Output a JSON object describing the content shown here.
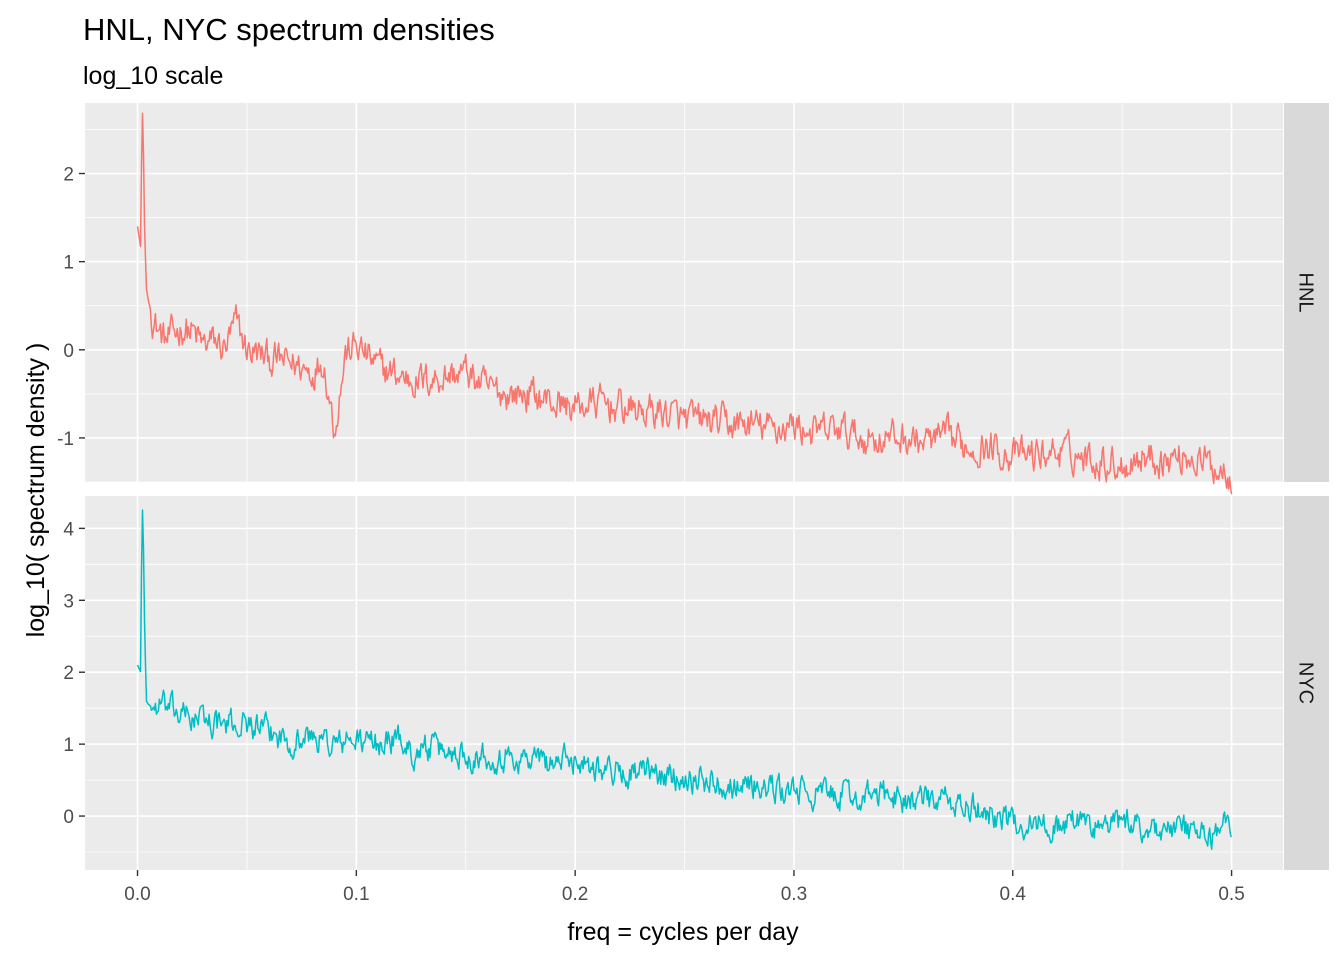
{
  "chart_data": {
    "type": "line",
    "title": "HNL, NYC spectrum densities",
    "subtitle": "log_10 scale",
    "xlabel": "freq = cycles per day",
    "ylabel": "log_10( spectrum density )",
    "xlim": [
      0,
      0.5
    ],
    "x_ticks": [
      "0.0",
      "0.1",
      "0.2",
      "0.3",
      "0.4",
      "0.5"
    ],
    "x_tick_values": [
      0,
      0.1,
      0.2,
      0.3,
      0.4,
      0.5
    ],
    "facet_layout": "rows, strip labels on the right",
    "grid": true,
    "legend": "none",
    "panels": [
      {
        "strip": "HNL",
        "color": "#F8766D",
        "ylim": [
          -1.5,
          2.8
        ],
        "y_ticks": [
          "2",
          "1",
          "0",
          "-1"
        ],
        "y_tick_values": [
          2,
          1,
          0,
          -1
        ],
        "x": [
          0,
          0.0015,
          0.002,
          0.0025,
          0.003,
          0.004,
          0.005,
          0.007,
          0.01,
          0.013,
          0.02,
          0.025,
          0.03,
          0.035,
          0.04,
          0.045,
          0.05,
          0.06,
          0.07,
          0.08,
          0.085,
          0.09,
          0.095,
          0.1,
          0.11,
          0.12,
          0.13,
          0.14,
          0.15,
          0.16,
          0.17,
          0.18,
          0.19,
          0.2,
          0.21,
          0.22,
          0.23,
          0.24,
          0.25,
          0.26,
          0.27,
          0.28,
          0.29,
          0.3,
          0.31,
          0.32,
          0.33,
          0.34,
          0.35,
          0.36,
          0.37,
          0.38,
          0.39,
          0.4,
          0.41,
          0.42,
          0.43,
          0.44,
          0.45,
          0.46,
          0.47,
          0.48,
          0.49,
          0.5
        ],
        "values": [
          1.4,
          1.15,
          2.6,
          2.75,
          1.6,
          0.7,
          0.55,
          0.35,
          0.2,
          0.1,
          0.25,
          0.2,
          0.05,
          0.1,
          0.0,
          0.3,
          0.0,
          -0.1,
          -0.15,
          -0.25,
          -0.1,
          -0.9,
          -0.05,
          0.05,
          -0.2,
          -0.3,
          -0.35,
          -0.3,
          -0.25,
          -0.45,
          -0.5,
          -0.5,
          -0.6,
          -0.65,
          -0.6,
          -0.65,
          -0.7,
          -0.7,
          -0.8,
          -0.8,
          -0.85,
          -0.85,
          -0.9,
          -0.85,
          -0.95,
          -0.9,
          -1.0,
          -1.0,
          -1.0,
          -1.05,
          -1.0,
          -1.1,
          -1.1,
          -1.2,
          -1.2,
          -1.15,
          -1.2,
          -1.25,
          -1.3,
          -1.2,
          -1.25,
          -1.2,
          -1.3,
          -1.4
        ]
      },
      {
        "strip": "NYC",
        "color": "#00BFC4",
        "ylim": [
          -0.75,
          4.45
        ],
        "y_ticks": [
          "4",
          "3",
          "2",
          "1",
          "0"
        ],
        "y_tick_values": [
          4,
          3,
          2,
          1,
          0
        ],
        "x": [
          0,
          0.0015,
          0.002,
          0.0025,
          0.003,
          0.004,
          0.005,
          0.008,
          0.01,
          0.02,
          0.03,
          0.04,
          0.05,
          0.06,
          0.07,
          0.08,
          0.09,
          0.1,
          0.11,
          0.12,
          0.125,
          0.13,
          0.14,
          0.15,
          0.16,
          0.17,
          0.18,
          0.19,
          0.2,
          0.21,
          0.22,
          0.23,
          0.24,
          0.25,
          0.26,
          0.27,
          0.28,
          0.29,
          0.3,
          0.31,
          0.32,
          0.33,
          0.34,
          0.35,
          0.36,
          0.37,
          0.38,
          0.39,
          0.4,
          0.41,
          0.42,
          0.43,
          0.44,
          0.45,
          0.46,
          0.47,
          0.48,
          0.49,
          0.5
        ],
        "values": [
          2.1,
          2.0,
          4.2,
          4.3,
          3.0,
          1.6,
          1.55,
          1.5,
          1.55,
          1.4,
          1.35,
          1.25,
          1.3,
          1.15,
          1.05,
          1.1,
          1.0,
          1.05,
          1.0,
          1.1,
          0.85,
          0.95,
          0.9,
          0.85,
          0.85,
          0.8,
          0.8,
          0.75,
          0.8,
          0.7,
          0.6,
          0.6,
          0.55,
          0.55,
          0.5,
          0.45,
          0.45,
          0.35,
          0.35,
          0.3,
          0.3,
          0.25,
          0.3,
          0.25,
          0.2,
          0.2,
          0.1,
          0.05,
          -0.1,
          -0.1,
          -0.15,
          -0.05,
          -0.15,
          -0.1,
          -0.15,
          -0.2,
          -0.2,
          -0.3,
          -0.05
        ]
      }
    ]
  }
}
